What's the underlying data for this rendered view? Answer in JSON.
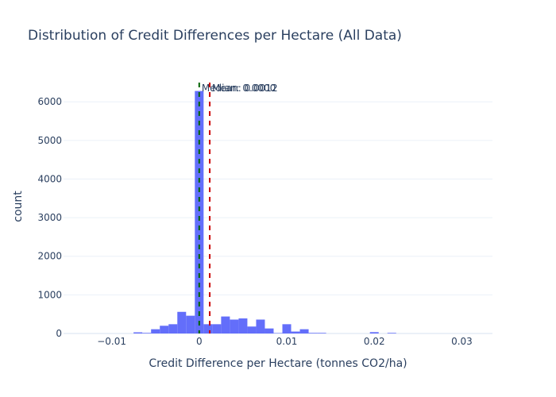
{
  "chart_data": {
    "type": "bar",
    "title": "Distribution of Credit Differences per Hectare (All Data)",
    "xlabel": "Credit Difference per Hectare (tonnes CO2/ha)",
    "ylabel": "count",
    "xlim": [
      -0.0155,
      0.0335
    ],
    "ylim": [
      0,
      6580
    ],
    "xticks": [
      -0.01,
      0,
      0.01,
      0.02,
      0.03
    ],
    "xtick_labels": [
      "−0.01",
      "0",
      "0.01",
      "0.02",
      "0.03"
    ],
    "yticks": [
      0,
      1000,
      2000,
      3000,
      4000,
      5000,
      6000
    ],
    "ytick_labels": [
      "0",
      "1000",
      "2000",
      "3000",
      "4000",
      "5000",
      "6000"
    ],
    "bar_color": "#636efa",
    "bins": [
      {
        "x0": -0.0075,
        "x1": -0.0065,
        "count": 30
      },
      {
        "x0": -0.0065,
        "x1": -0.0055,
        "count": 15
      },
      {
        "x0": -0.0055,
        "x1": -0.0045,
        "count": 110
      },
      {
        "x0": -0.0045,
        "x1": -0.0035,
        "count": 200
      },
      {
        "x0": -0.0035,
        "x1": -0.0025,
        "count": 240
      },
      {
        "x0": -0.0025,
        "x1": -0.0015,
        "count": 560
      },
      {
        "x0": -0.0015,
        "x1": -0.0005,
        "count": 460
      },
      {
        "x0": -0.0005,
        "x1": 0.0005,
        "count": 6280
      },
      {
        "x0": 0.0005,
        "x1": 0.0015,
        "count": 240
      },
      {
        "x0": 0.0015,
        "x1": 0.0025,
        "count": 240
      },
      {
        "x0": 0.0025,
        "x1": 0.0035,
        "count": 440
      },
      {
        "x0": 0.0035,
        "x1": 0.0045,
        "count": 360
      },
      {
        "x0": 0.0045,
        "x1": 0.0055,
        "count": 390
      },
      {
        "x0": 0.0055,
        "x1": 0.0065,
        "count": 180
      },
      {
        "x0": 0.0065,
        "x1": 0.0075,
        "count": 360
      },
      {
        "x0": 0.0075,
        "x1": 0.0085,
        "count": 130
      },
      {
        "x0": 0.0085,
        "x1": 0.0095,
        "count": 10
      },
      {
        "x0": 0.0095,
        "x1": 0.0105,
        "count": 240
      },
      {
        "x0": 0.0105,
        "x1": 0.0115,
        "count": 50
      },
      {
        "x0": 0.0115,
        "x1": 0.0125,
        "count": 110
      },
      {
        "x0": 0.0125,
        "x1": 0.0135,
        "count": 15
      },
      {
        "x0": 0.0135,
        "x1": 0.0145,
        "count": 15
      },
      {
        "x0": 0.0195,
        "x1": 0.0205,
        "count": 35
      },
      {
        "x0": 0.0215,
        "x1": 0.0225,
        "count": 15
      }
    ],
    "lines": [
      {
        "name": "Median",
        "label": "Median: 0.0000",
        "x": 0.0,
        "color": "#006400"
      },
      {
        "name": "Mean",
        "label": "Mean: 0.0012",
        "x": 0.0012,
        "color": "#cc0000"
      }
    ],
    "grid": true,
    "legend": "none"
  }
}
